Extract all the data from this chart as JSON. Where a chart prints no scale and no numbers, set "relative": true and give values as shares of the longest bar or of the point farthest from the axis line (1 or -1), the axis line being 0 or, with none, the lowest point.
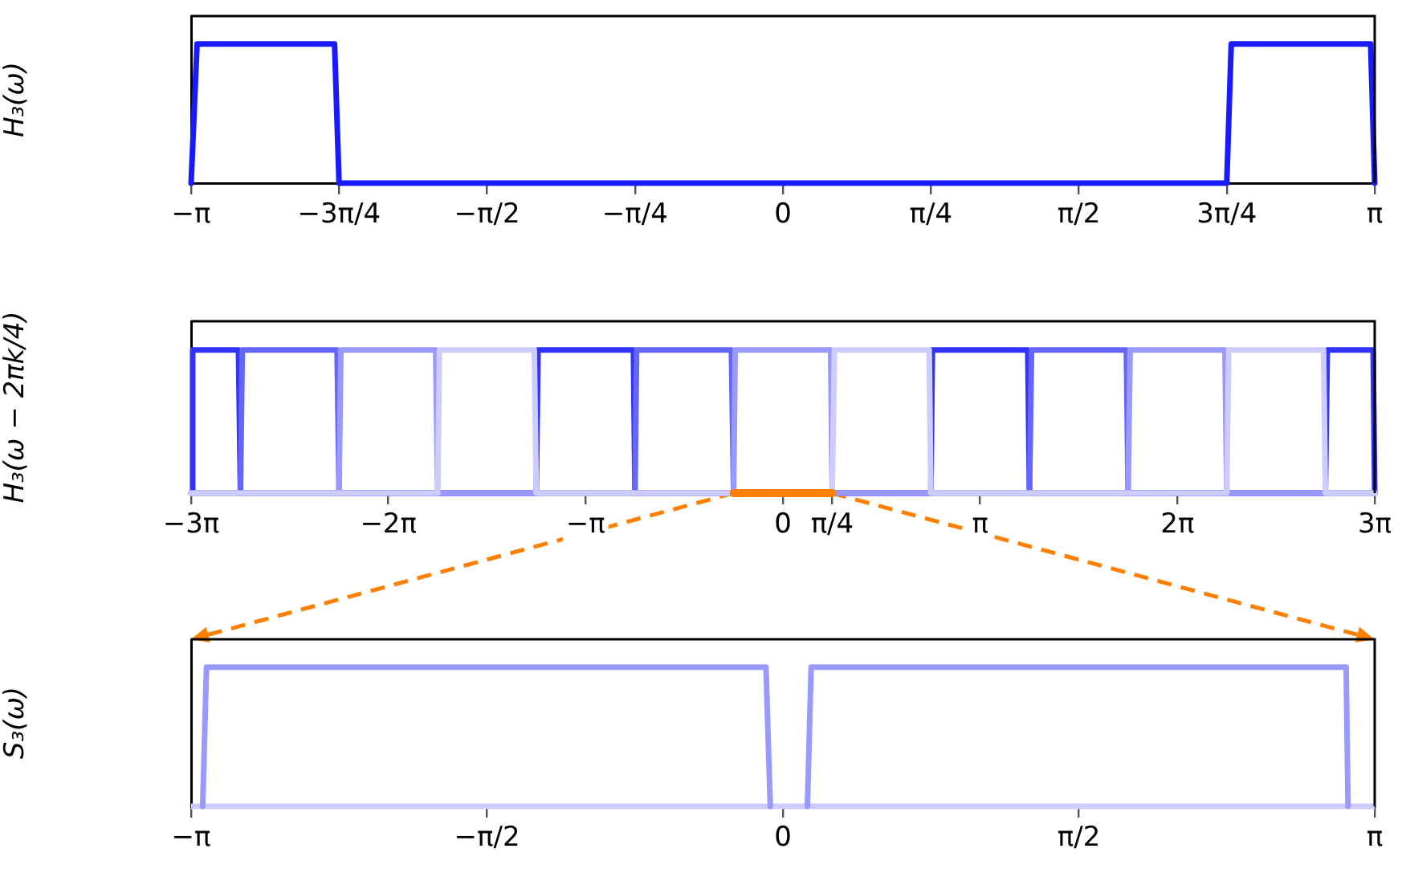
{
  "chart_data": [
    {
      "type": "line",
      "ylabel": "H₃(ω)",
      "relative": true,
      "tick_labels": "x",
      "legend": false,
      "grid": false,
      "xlim": [
        -3.1416,
        3.1416
      ],
      "xticks": [
        {
          "value": -3.1416,
          "label": "−π"
        },
        {
          "value": -2.3562,
          "label": "−3π/4"
        },
        {
          "value": -1.5708,
          "label": "−π/2"
        },
        {
          "value": -0.7854,
          "label": "−π/4"
        },
        {
          "value": 0,
          "label": "0"
        },
        {
          "value": 0.7854,
          "label": "π/4"
        },
        {
          "value": 1.5708,
          "label": "π/2"
        },
        {
          "value": 2.3562,
          "label": "3π/4"
        },
        {
          "value": 3.1416,
          "label": "π"
        }
      ],
      "series": [
        {
          "color": "#1a1aff",
          "x": [
            -3.1416,
            -3.11,
            -2.38,
            -2.3562,
            2.3562,
            2.38,
            3.12,
            3.1416
          ],
          "values": [
            0,
            1,
            1,
            0,
            0,
            1,
            1,
            0
          ]
        }
      ]
    },
    {
      "type": "line",
      "ylabel": "H₃(ω − 2πk/4)",
      "relative": true,
      "tick_labels": "x",
      "legend": false,
      "grid": false,
      "xlim": [
        -9.4248,
        9.4248
      ],
      "xticks": [
        {
          "value": -9.4248,
          "label": "−3π"
        },
        {
          "value": -6.2832,
          "label": "−2π"
        },
        {
          "value": -3.1416,
          "label": "−π"
        },
        {
          "value": 0,
          "label": "0"
        },
        {
          "value": 0.7854,
          "label": "π/4"
        },
        {
          "value": 3.1416,
          "label": "π"
        },
        {
          "value": 6.2832,
          "label": "2π"
        },
        {
          "value": 9.4248,
          "label": "3π"
        }
      ],
      "series": [
        {
          "color": "#ff8000",
          "x": [
            -0.7854,
            0.7854
          ],
          "values": [
            0,
            0
          ]
        },
        {
          "color": "#ccccff",
          "x": [
            -9.4248,
            -5.4978,
            -5.47,
            -3.96,
            -3.927,
            0.7854,
            0.82,
            2.33,
            2.3562,
            7.0686,
            7.1,
            8.61,
            8.6394,
            9.4248
          ],
          "values": [
            0,
            0,
            1,
            1,
            0,
            0,
            1,
            1,
            0,
            0,
            1,
            1,
            0,
            0
          ]
        },
        {
          "color": "#9999ff",
          "x": [
            -9.4248,
            -7.0686,
            -7.04,
            -5.53,
            -5.4978,
            -0.7854,
            -0.76,
            0.76,
            0.7854,
            5.4978,
            5.53,
            7.04,
            7.0686,
            9.4248
          ],
          "values": [
            0,
            0,
            1,
            1,
            0,
            0,
            1,
            1,
            0,
            0,
            1,
            1,
            0,
            0
          ]
        },
        {
          "color": "#6666ff",
          "x": [
            -9.4248,
            -8.6394,
            -8.61,
            -7.1,
            -7.0686,
            -2.3562,
            -2.33,
            -0.82,
            -0.7854,
            3.927,
            3.96,
            5.47,
            5.4978,
            9.4248
          ],
          "values": [
            0,
            0,
            1,
            1,
            0,
            0,
            1,
            1,
            0,
            0,
            1,
            1,
            0,
            0
          ]
        },
        {
          "color": "#3333ff",
          "x": [
            -9.4248,
            -9.4,
            -8.67,
            -8.6394,
            -3.927,
            -3.9,
            -2.38,
            -2.3562,
            2.3562,
            2.38,
            3.9,
            3.927,
            8.6394,
            8.67,
            9.4,
            9.4248
          ],
          "values": [
            0,
            1,
            1,
            0,
            0,
            1,
            1,
            0,
            0,
            1,
            1,
            0,
            0,
            1,
            1,
            0
          ]
        }
      ]
    },
    {
      "type": "line",
      "ylabel": "S₃(ω)",
      "relative": true,
      "tick_labels": "x",
      "legend": false,
      "grid": false,
      "xlim": [
        -3.1416,
        3.1416
      ],
      "xticks": [
        {
          "value": -3.1416,
          "label": "−π"
        },
        {
          "value": -1.5708,
          "label": "−π/2"
        },
        {
          "value": 0,
          "label": "0"
        },
        {
          "value": 1.5708,
          "label": "π/2"
        },
        {
          "value": 3.1416,
          "label": "π"
        }
      ],
      "ref_lines": [
        {
          "axis": "y",
          "value": 0,
          "color": "#ccccff"
        }
      ],
      "series": [
        {
          "color": "#9999ff",
          "x": [
            -3.08,
            -3.06,
            -0.09,
            -0.067,
            0.03,
            0.13,
            0.15,
            2.99,
            3.0
          ],
          "values": [
            0,
            1,
            1,
            0,
            null,
            0,
            1,
            1,
            0
          ]
        }
      ]
    }
  ]
}
